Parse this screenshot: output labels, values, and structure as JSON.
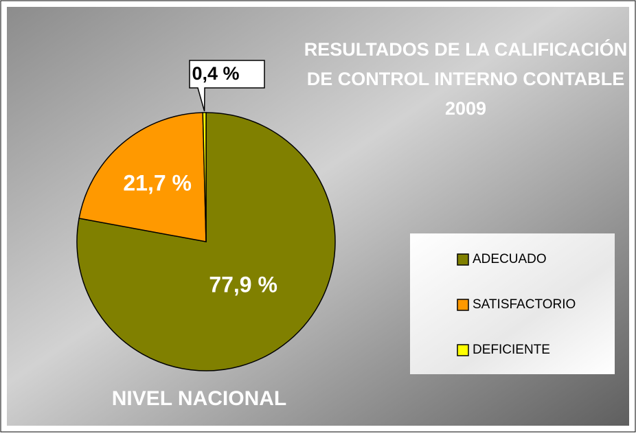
{
  "chart_data": {
    "type": "pie",
    "title": [
      "RESULTADOS DE LA CALIFICACIÓN",
      "DE CONTROL INTERNO CONTABLE",
      "2009"
    ],
    "subtitle": "NIVEL NACIONAL",
    "categories": [
      "ADECUADO",
      "SATISFACTORIO",
      "DEFICIENTE"
    ],
    "values": [
      77.9,
      21.7,
      0.4
    ],
    "value_labels": [
      "77,9 %",
      "21,7 %",
      "0,4 %"
    ],
    "colors": [
      "#808000",
      "#ff9900",
      "#ffff00"
    ],
    "legend": "right"
  }
}
